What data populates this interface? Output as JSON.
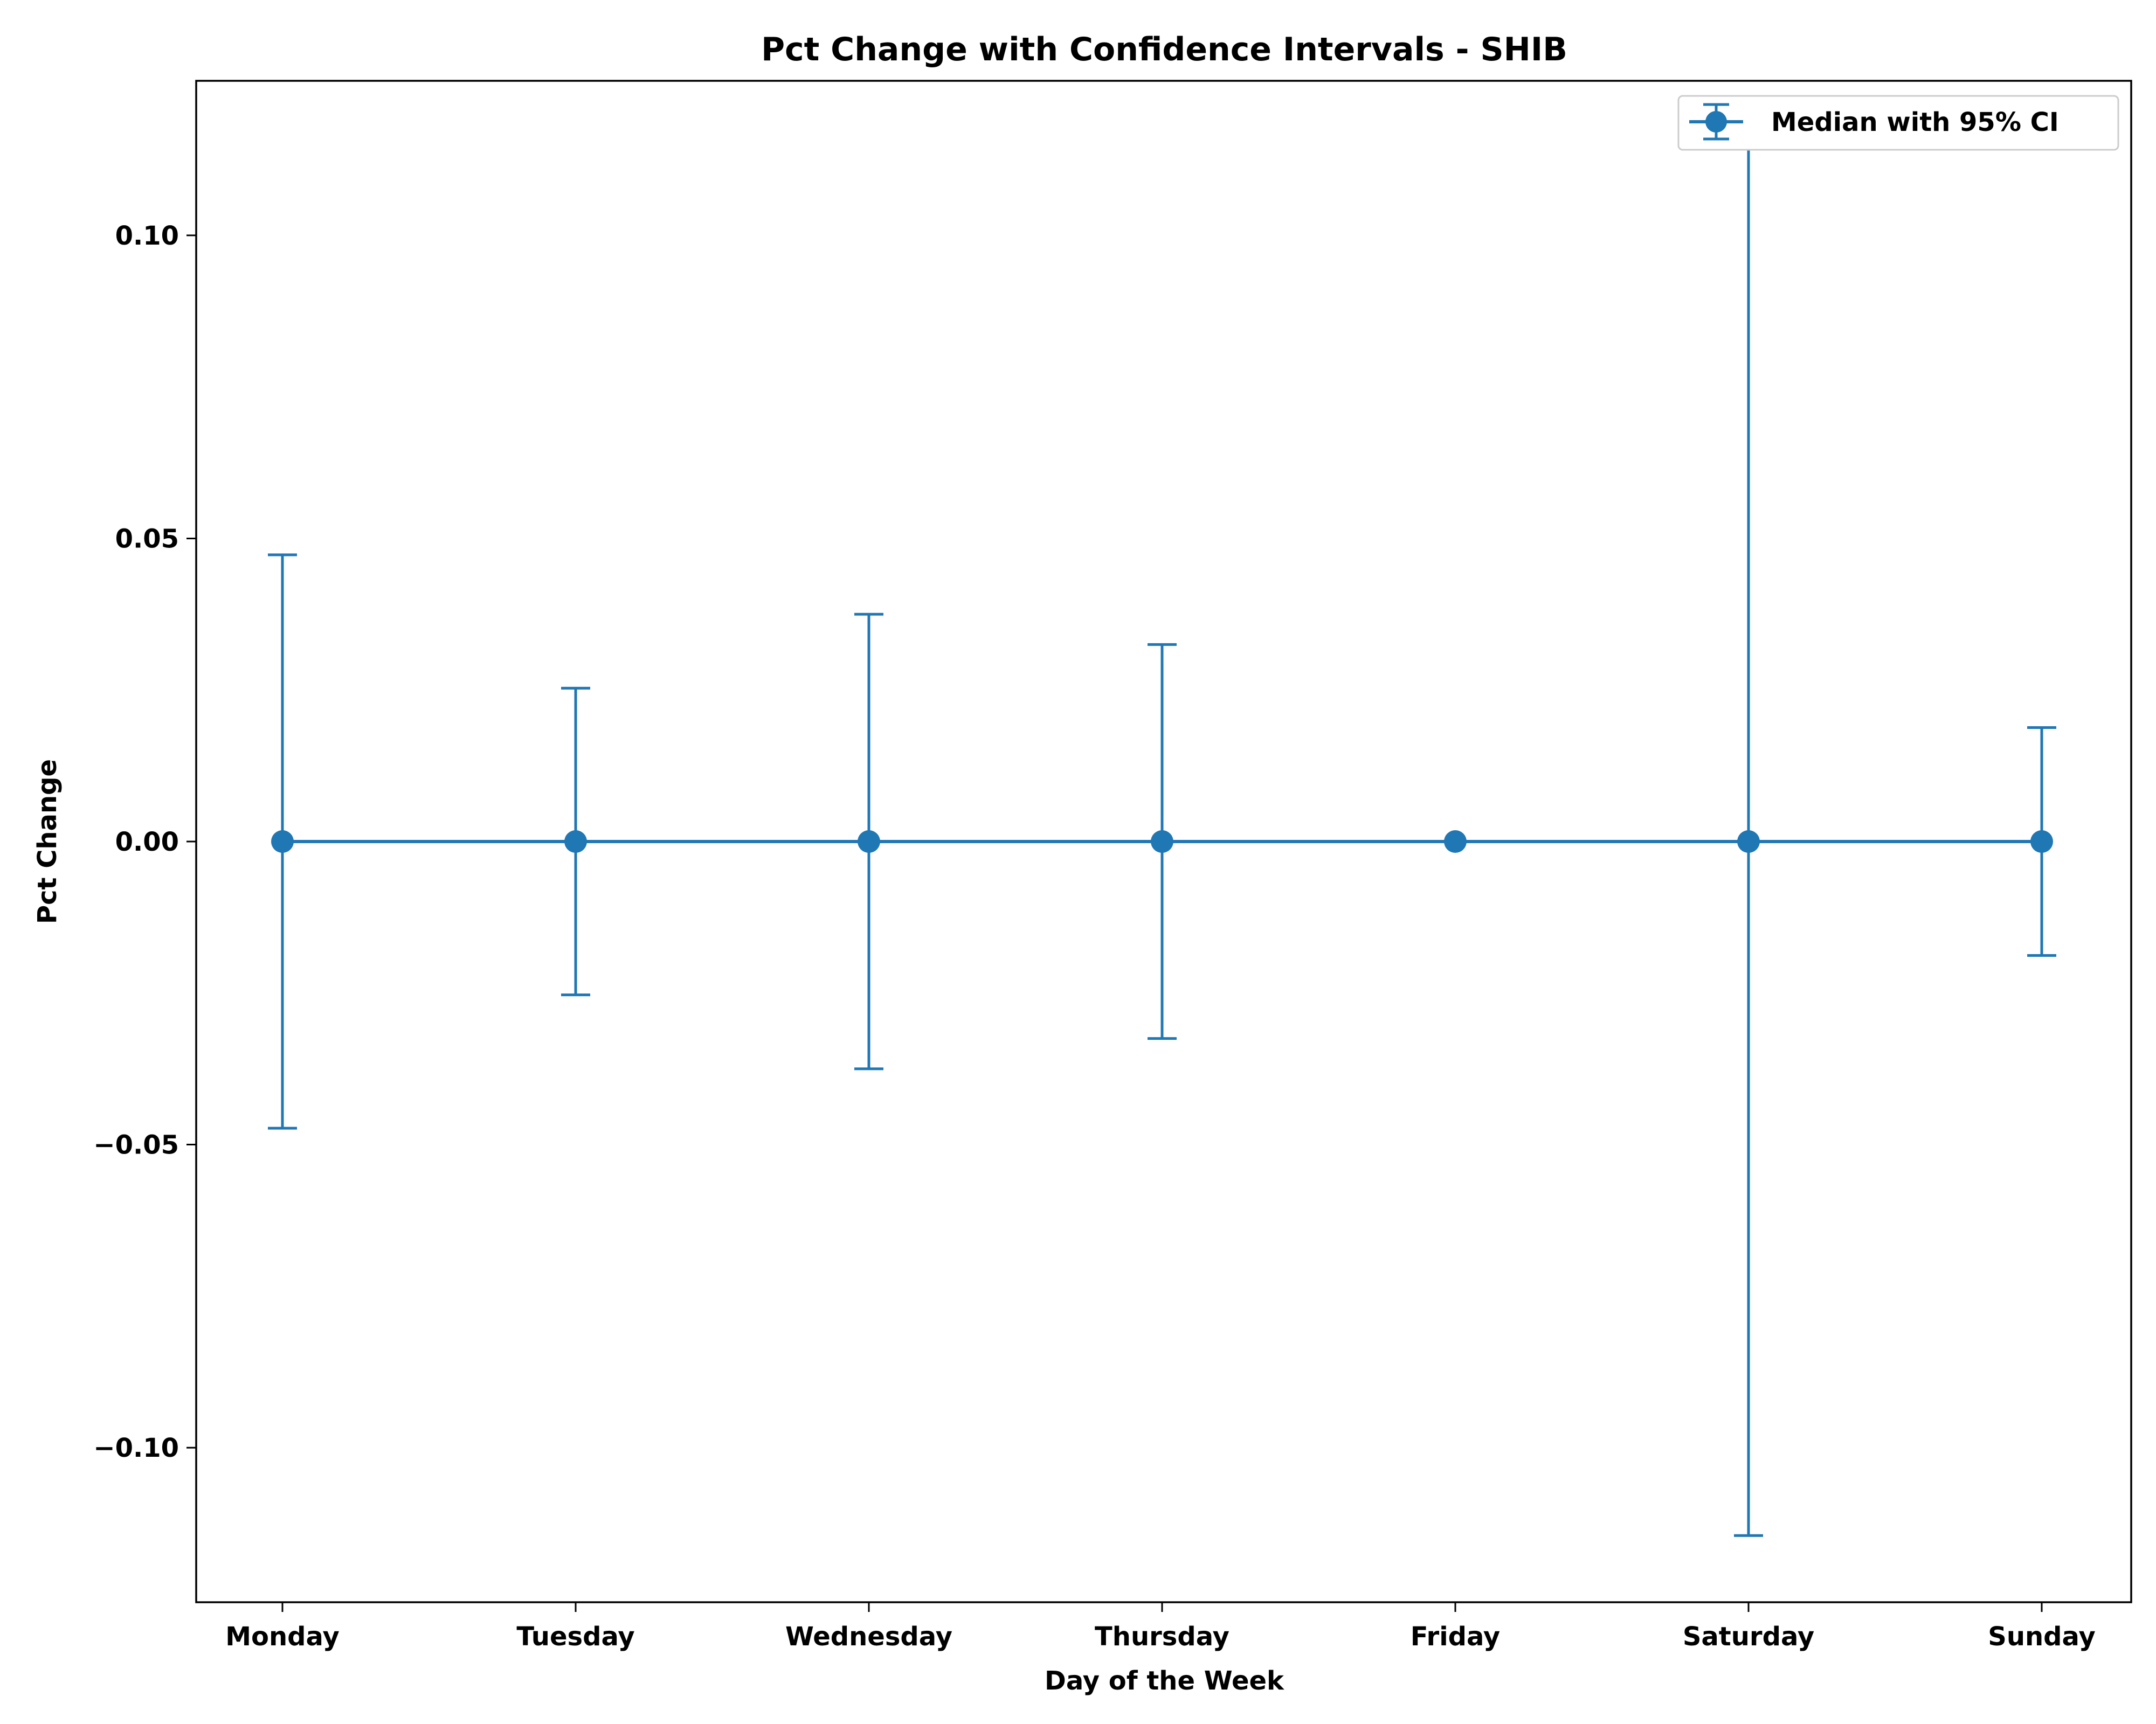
{
  "chart_data": {
    "type": "line",
    "title": "Pct Change with Confidence Intervals - SHIB",
    "xlabel": "Day of the Week",
    "ylabel": "Pct Change",
    "categories": [
      "Monday",
      "Tuesday",
      "Wednesday",
      "Thursday",
      "Friday",
      "Saturday",
      "Sunday"
    ],
    "series": [
      {
        "name": "Median with 95% CI",
        "values": [
          0.0,
          0.0,
          0.0,
          0.0,
          0.0,
          0.0,
          0.0
        ],
        "ci_lower": [
          -0.0473,
          -0.0253,
          -0.0375,
          -0.0325,
          0.0,
          -0.1145,
          -0.0188
        ],
        "ci_upper": [
          0.0473,
          0.0253,
          0.0375,
          0.0325,
          0.0,
          0.1145,
          0.0188
        ]
      }
    ],
    "ylim": [
      -0.1255,
      0.1255
    ],
    "yticks": [
      -0.1,
      -0.05,
      0.0,
      0.05,
      0.1
    ],
    "ytick_labels": [
      "−0.10",
      "−0.05",
      "0.00",
      "0.05",
      "0.10"
    ],
    "grid": false,
    "legend_position": "top-right",
    "color": "#1f77b4"
  }
}
